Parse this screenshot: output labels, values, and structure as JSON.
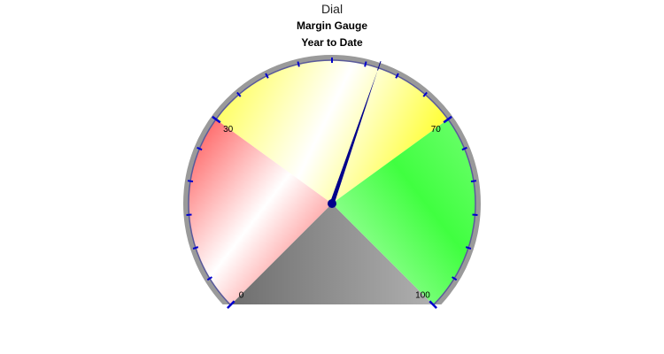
{
  "title": "Dial",
  "subtitles": [
    "Margin Gauge",
    "Year to Date"
  ],
  "colors": {
    "low": "#ff3333",
    "mid": "#ffff33",
    "high": "#33ff33",
    "base": "#808080",
    "needle": "#00008b",
    "ticks": "#0000cc",
    "rim": "#888888"
  },
  "chart_data": {
    "type": "gauge",
    "title": "Dial",
    "subtitles": [
      "Margin Gauge",
      "Year to Date"
    ],
    "min": 0,
    "max": 100,
    "value": 57,
    "bands": [
      {
        "from": 0,
        "to": 30,
        "color": "red"
      },
      {
        "from": 30,
        "to": 70,
        "color": "yellow"
      },
      {
        "from": 70,
        "to": 100,
        "color": "green"
      }
    ],
    "tick_labels": [
      "0",
      "30",
      "70",
      "100"
    ],
    "tick_values": [
      0,
      30,
      70,
      100
    ]
  }
}
